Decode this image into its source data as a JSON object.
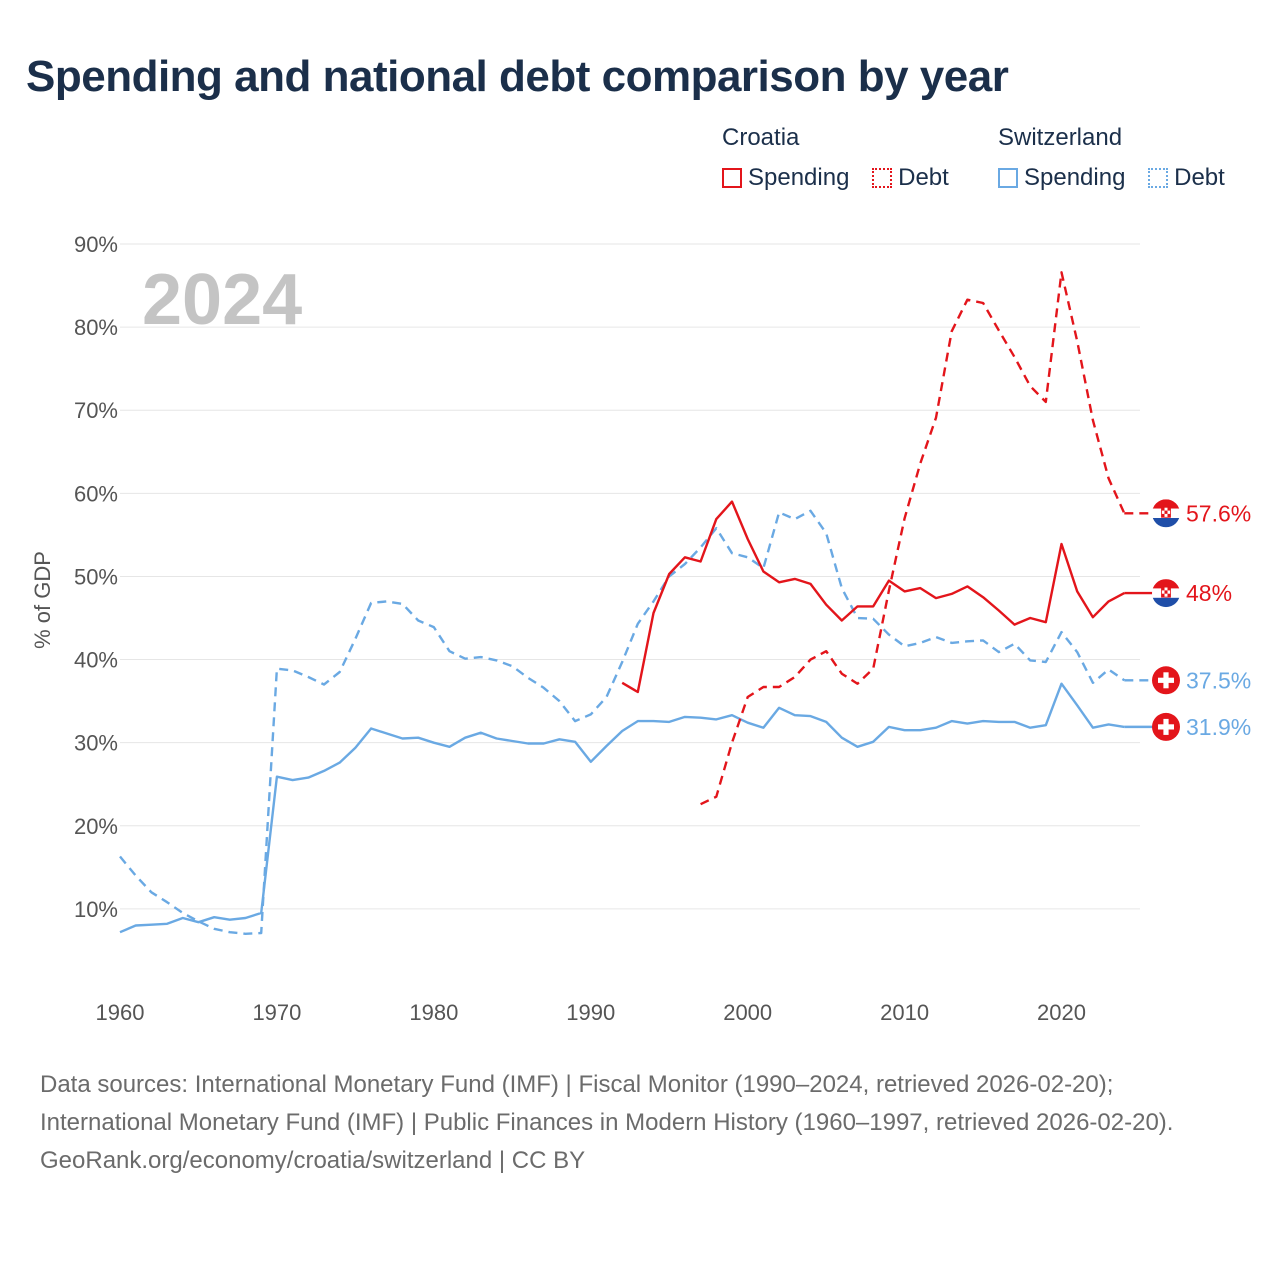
{
  "title": "Spending and national debt comparison by year",
  "legend": {
    "groups": [
      {
        "name": "Croatia",
        "items": [
          "Spending",
          "Debt"
        ]
      },
      {
        "name": "Switzerland",
        "items": [
          "Spending",
          "Debt"
        ]
      }
    ]
  },
  "colors": {
    "croatia": "#e3151b",
    "switzerland": "#6aa9e3",
    "year": "#c4c4c4",
    "grid": "#e6e6e6",
    "axis_text": "#555555"
  },
  "year_watermark": "2024",
  "footer": {
    "sources": "Data sources: International Monetary Fund (IMF) | Fiscal Monitor (1990–2024, retrieved 2026-02-20); International Monetary Fund (IMF) | Public Finances in Modern History (1960–1997, retrieved 2026-02-20).",
    "credit": "GeoRank.org/economy/croatia/switzerland | CC BY"
  },
  "chart_data": {
    "type": "line",
    "title": "Spending and national debt comparison by year",
    "xlabel": "",
    "ylabel": "% of GDP",
    "xlim": [
      1960,
      2025
    ],
    "ylim": [
      0,
      90
    ],
    "x_ticks": [
      "1960",
      "1970",
      "1980",
      "1990",
      "2000",
      "2010",
      "2020"
    ],
    "y_ticks": [
      "10%",
      "20%",
      "30%",
      "40%",
      "50%",
      "60%",
      "70%",
      "80%",
      "90%"
    ],
    "grid": true,
    "series": [
      {
        "name": "Croatia Spending",
        "country": "Croatia",
        "metric": "Spending",
        "style": "solid",
        "end_label": "48%",
        "x": [
          1992,
          1993,
          1994,
          1995,
          1996,
          1997,
          1998,
          1999,
          2000,
          2001,
          2002,
          2003,
          2004,
          2005,
          2006,
          2007,
          2008,
          2009,
          2010,
          2011,
          2012,
          2013,
          2014,
          2015,
          2016,
          2017,
          2018,
          2019,
          2020,
          2021,
          2022,
          2023,
          2024
        ],
        "values": [
          37.2,
          36.1,
          45.6,
          50.3,
          52.3,
          51.8,
          56.9,
          59.0,
          54.5,
          50.6,
          49.3,
          49.7,
          49.1,
          46.6,
          44.7,
          46.4,
          46.4,
          49.5,
          48.2,
          48.6,
          47.4,
          47.9,
          48.8,
          47.5,
          45.9,
          44.2,
          45.0,
          44.5,
          53.9,
          48.2,
          45.1,
          47.0,
          48.0
        ]
      },
      {
        "name": "Croatia Debt",
        "country": "Croatia",
        "metric": "Debt",
        "style": "dashed",
        "end_label": "57.6%",
        "x": [
          1997,
          1998,
          1999,
          2000,
          2001,
          2002,
          2003,
          2004,
          2005,
          2006,
          2007,
          2008,
          2009,
          2010,
          2011,
          2012,
          2013,
          2014,
          2015,
          2016,
          2017,
          2018,
          2019,
          2020,
          2021,
          2022,
          2023,
          2024
        ],
        "values": [
          22.6,
          23.5,
          30.0,
          35.5,
          36.7,
          36.7,
          37.9,
          40.0,
          41.0,
          38.3,
          37.1,
          38.9,
          48.3,
          57.0,
          63.6,
          69.1,
          79.5,
          83.3,
          82.9,
          79.6,
          76.4,
          72.9,
          71.0,
          86.6,
          78.3,
          68.8,
          61.8,
          57.6
        ]
      },
      {
        "name": "Switzerland Spending",
        "country": "Switzerland",
        "metric": "Spending",
        "style": "solid",
        "end_label": "31.9%",
        "x": [
          1960,
          1961,
          1962,
          1963,
          1964,
          1965,
          1966,
          1967,
          1968,
          1969,
          1970,
          1971,
          1972,
          1973,
          1974,
          1975,
          1976,
          1977,
          1978,
          1979,
          1980,
          1981,
          1982,
          1983,
          1984,
          1985,
          1986,
          1987,
          1988,
          1989,
          1990,
          1991,
          1992,
          1993,
          1994,
          1995,
          1996,
          1997,
          1998,
          1999,
          2000,
          2001,
          2002,
          2003,
          2004,
          2005,
          2006,
          2007,
          2008,
          2009,
          2010,
          2011,
          2012,
          2013,
          2014,
          2015,
          2016,
          2017,
          2018,
          2019,
          2020,
          2021,
          2022,
          2023,
          2024
        ],
        "values": [
          7.2,
          8.0,
          8.1,
          8.2,
          8.9,
          8.4,
          9.0,
          8.7,
          8.9,
          9.5,
          25.9,
          25.5,
          25.8,
          26.6,
          27.6,
          29.4,
          31.7,
          31.1,
          30.5,
          30.6,
          30.0,
          29.5,
          30.6,
          31.2,
          30.5,
          30.2,
          29.9,
          29.9,
          30.4,
          30.1,
          27.7,
          29.6,
          31.4,
          32.6,
          32.6,
          32.5,
          33.1,
          33.0,
          32.8,
          33.3,
          32.4,
          31.8,
          34.2,
          33.3,
          33.2,
          32.5,
          30.6,
          29.5,
          30.1,
          31.9,
          31.5,
          31.5,
          31.8,
          32.6,
          32.3,
          32.6,
          32.5,
          32.5,
          31.8,
          32.1,
          37.1,
          34.5,
          31.8,
          32.2,
          31.9
        ]
      },
      {
        "name": "Switzerland Debt",
        "country": "Switzerland",
        "metric": "Debt",
        "style": "dashed",
        "end_label": "37.5%",
        "x": [
          1960,
          1961,
          1962,
          1963,
          1964,
          1965,
          1966,
          1967,
          1968,
          1969,
          1970,
          1971,
          1972,
          1973,
          1974,
          1975,
          1976,
          1977,
          1978,
          1979,
          1980,
          1981,
          1982,
          1983,
          1984,
          1985,
          1986,
          1987,
          1988,
          1989,
          1990,
          1991,
          1992,
          1993,
          1994,
          1995,
          1996,
          1997,
          1998,
          1999,
          2000,
          2001,
          2002,
          2003,
          2004,
          2005,
          2006,
          2007,
          2008,
          2009,
          2010,
          2011,
          2012,
          2013,
          2014,
          2015,
          2016,
          2017,
          2018,
          2019,
          2020,
          2021,
          2022,
          2023,
          2024
        ],
        "values": [
          16.3,
          14.0,
          12.0,
          10.8,
          9.5,
          8.5,
          7.6,
          7.2,
          7.0,
          7.1,
          38.9,
          38.7,
          37.9,
          37.0,
          38.5,
          42.5,
          46.8,
          47.0,
          46.7,
          44.7,
          43.9,
          41.0,
          40.1,
          40.3,
          39.9,
          39.2,
          37.8,
          36.6,
          35.0,
          32.6,
          33.4,
          35.5,
          39.7,
          44.3,
          47.0,
          50.0,
          51.5,
          53.5,
          55.8,
          52.8,
          52.3,
          51.0,
          57.7,
          56.9,
          57.9,
          55.2,
          48.6,
          45.0,
          44.9,
          43.0,
          41.6,
          42.0,
          42.7,
          42.0,
          42.2,
          42.3,
          40.9,
          41.9,
          39.9,
          39.7,
          43.3,
          40.9,
          37.2,
          38.8,
          37.5
        ]
      }
    ]
  }
}
